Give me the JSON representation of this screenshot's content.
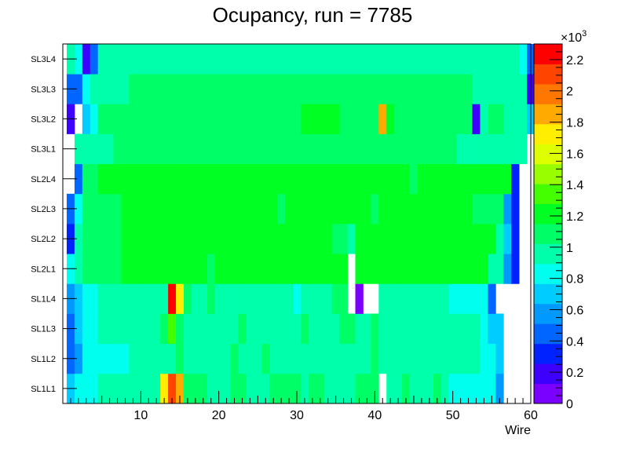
{
  "chart_data": {
    "type": "heatmap",
    "title": "Ocupancy, run = 7785",
    "xlabel": "Wire",
    "ylabel": "",
    "x_range": [
      0,
      60
    ],
    "x_bin_start": 1,
    "x_ticks": [
      10,
      20,
      30,
      40,
      50,
      60
    ],
    "x_tick_labels": [
      "10",
      "20",
      "30",
      "40",
      "50",
      "60"
    ],
    "rows": [
      "SL1L1",
      "SL1L2",
      "SL1L3",
      "SL1L4",
      "SL2L1",
      "SL2L2",
      "SL2L3",
      "SL2L4",
      "SL3L1",
      "SL3L2",
      "SL3L3",
      "SL3L4"
    ],
    "z_range": [
      0,
      2300
    ],
    "z_multiplier_label": "×10",
    "z_multiplier_exponent": "3",
    "z_ticks": [
      0,
      200,
      400,
      600,
      800,
      1000,
      1200,
      1400,
      1600,
      1800,
      2000,
      2200
    ],
    "z_tick_labels": [
      "0",
      "0.2",
      "0.4",
      "0.6",
      "0.8",
      "1",
      "1.2",
      "1.4",
      "1.6",
      "1.8",
      "2",
      "2.2"
    ],
    "palette": [
      "#7a00ff",
      "#3d00ff",
      "#0022ff",
      "#0066ff",
      "#0099ff",
      "#00ccff",
      "#00ffee",
      "#00ffaa",
      "#00ff66",
      "#00ff22",
      "#44ff00",
      "#99ff00",
      "#ddff00",
      "#ffee00",
      "#ffaa00",
      "#ff7700",
      "#ff4400",
      "#ff0000"
    ],
    "values": [
      [
        650,
        800,
        800,
        800,
        950,
        950,
        950,
        950,
        950,
        1000,
        1000,
        1000,
        1700,
        2100,
        1800,
        1050,
        1050,
        1050,
        1000,
        1000,
        1000,
        1050,
        1050,
        1000,
        1000,
        1000,
        1050,
        1100,
        1050,
        1050,
        1000,
        1050,
        1050,
        1000,
        1000,
        1000,
        1000,
        1050,
        1050,
        1050,
        null,
        1000,
        1000,
        1050,
        1000,
        1000,
        1000,
        1100,
        900,
        850,
        850,
        850,
        850,
        850,
        800,
        600,
        0,
        0,
        0,
        0
      ],
      [
        500,
        600,
        800,
        850,
        850,
        850,
        850,
        850,
        950,
        1000,
        1000,
        1000,
        1000,
        1000,
        1100,
        1000,
        1000,
        1000,
        1000,
        1000,
        1000,
        1050,
        1000,
        1000,
        1000,
        1050,
        1000,
        1000,
        1000,
        1000,
        1000,
        1000,
        1000,
        1000,
        1000,
        1000,
        1000,
        1000,
        1000,
        1050,
        1000,
        1000,
        1000,
        1000,
        1000,
        1000,
        950,
        950,
        950,
        950,
        950,
        950,
        900,
        850,
        800,
        650,
        0,
        0,
        0,
        0
      ],
      [
        500,
        650,
        800,
        800,
        950,
        950,
        950,
        950,
        950,
        1000,
        1000,
        1000,
        1050,
        1350,
        1100,
        1000,
        1000,
        1000,
        1000,
        1000,
        1000,
        1000,
        1050,
        1000,
        1000,
        1000,
        1000,
        1000,
        1000,
        1000,
        1050,
        1000,
        1000,
        1000,
        1000,
        1050,
        1050,
        1000,
        1000,
        1050,
        1000,
        1000,
        1000,
        1000,
        1000,
        1000,
        950,
        900,
        900,
        900,
        900,
        900,
        900,
        850,
        650,
        650,
        0,
        0,
        0,
        0
      ],
      [
        600,
        700,
        800,
        850,
        950,
        950,
        950,
        950,
        950,
        1000,
        1000,
        1000,
        1000,
        2300,
        1700,
        1050,
        1000,
        1000,
        1050,
        900,
        1000,
        1000,
        1000,
        1000,
        1000,
        1000,
        1000,
        1000,
        1000,
        850,
        1000,
        1000,
        1000,
        1000,
        1050,
        1050,
        null,
        100,
        null,
        null,
        1000,
        1000,
        1000,
        1000,
        1000,
        950,
        950,
        900,
        900,
        850,
        850,
        850,
        850,
        850,
        400,
        0,
        0,
        0,
        0,
        0
      ],
      [
        850,
        1000,
        1050,
        1050,
        1050,
        1050,
        1100,
        1150,
        1150,
        1150,
        1150,
        1150,
        1150,
        1150,
        1150,
        1150,
        1150,
        1150,
        1100,
        1150,
        1150,
        1150,
        1150,
        1150,
        1150,
        1150,
        1150,
        1150,
        1150,
        1150,
        1150,
        1150,
        1150,
        1150,
        1150,
        1150,
        null,
        1150,
        1150,
        1150,
        1150,
        1150,
        1150,
        1150,
        1150,
        1150,
        1150,
        1150,
        1150,
        1150,
        1150,
        1150,
        1150,
        1150,
        1000,
        950,
        600,
        300,
        0,
        0
      ],
      [
        350,
        900,
        1050,
        1050,
        1050,
        1050,
        1100,
        1150,
        1150,
        1150,
        1150,
        1150,
        1150,
        1150,
        1150,
        1150,
        1150,
        1150,
        1150,
        1150,
        1150,
        1150,
        1150,
        1150,
        1150,
        1150,
        1150,
        1150,
        1150,
        1150,
        1150,
        1150,
        1150,
        1150,
        1050,
        1100,
        1000,
        1150,
        1150,
        1150,
        1150,
        1150,
        1150,
        1150,
        1150,
        1150,
        1150,
        1150,
        1150,
        1150,
        1150,
        1150,
        1150,
        1150,
        1150,
        1000,
        650,
        300,
        0,
        0
      ],
      [
        450,
        800,
        1100,
        1050,
        1050,
        1050,
        1100,
        1150,
        1150,
        1150,
        1150,
        1150,
        1150,
        1150,
        1150,
        1150,
        1150,
        1150,
        1150,
        1150,
        1150,
        1150,
        1150,
        1150,
        1150,
        1150,
        1150,
        1100,
        1150,
        1150,
        1150,
        1150,
        1150,
        1150,
        1150,
        1150,
        1150,
        1150,
        1150,
        1100,
        1150,
        1150,
        1150,
        1150,
        1150,
        1150,
        1150,
        1150,
        1150,
        1150,
        1150,
        1150,
        1050,
        1050,
        1050,
        1050,
        550,
        300,
        0,
        0
      ],
      [
        null,
        500,
        1050,
        1050,
        1150,
        1150,
        1150,
        1150,
        1150,
        1150,
        1150,
        1150,
        1150,
        1150,
        1150,
        1150,
        1150,
        1150,
        1150,
        1150,
        1150,
        1150,
        1150,
        1150,
        1150,
        1150,
        1150,
        1150,
        1150,
        1150,
        1150,
        1150,
        1150,
        1150,
        1150,
        1150,
        1150,
        1150,
        1150,
        1150,
        1150,
        1150,
        1150,
        1150,
        1100,
        1150,
        1150,
        1150,
        1150,
        1150,
        1150,
        1150,
        1150,
        1150,
        1150,
        1150,
        1150,
        300,
        0,
        0
      ],
      [
        null,
        900,
        950,
        950,
        1000,
        1000,
        1050,
        1050,
        1050,
        1050,
        1050,
        1050,
        1050,
        1050,
        1050,
        1050,
        1050,
        1050,
        1050,
        1050,
        1050,
        1050,
        1050,
        1050,
        1050,
        1050,
        1050,
        1050,
        1050,
        1050,
        1050,
        1050,
        1050,
        1050,
        1050,
        1050,
        1050,
        1050,
        1050,
        1050,
        1050,
        1050,
        1050,
        1050,
        1050,
        1050,
        1050,
        1050,
        1050,
        1050,
        1000,
        1000,
        950,
        1000,
        950,
        950,
        950,
        950,
        950,
        null
      ],
      [
        200,
        null,
        700,
        850,
        1050,
        1050,
        1050,
        1050,
        1050,
        1050,
        1050,
        1050,
        1050,
        1050,
        1050,
        1050,
        1050,
        1050,
        1050,
        1050,
        1050,
        1050,
        1050,
        1050,
        1050,
        1050,
        1050,
        1050,
        1050,
        1050,
        1150,
        1150,
        1150,
        1150,
        1150,
        1050,
        1050,
        1050,
        1050,
        1050,
        1900,
        1150,
        1050,
        1050,
        1050,
        1050,
        1050,
        1050,
        1050,
        1050,
        1050,
        1050,
        200,
        900,
        1050,
        1050,
        1000,
        950,
        950,
        650
      ],
      [
        400,
        400,
        800,
        900,
        1000,
        1000,
        1000,
        1000,
        1050,
        1050,
        1050,
        1050,
        1050,
        1050,
        1050,
        1050,
        1050,
        1050,
        1050,
        1050,
        1050,
        1050,
        1050,
        1050,
        1050,
        1050,
        1050,
        1050,
        1050,
        1050,
        1050,
        1050,
        1050,
        1050,
        1050,
        1050,
        1050,
        1050,
        1050,
        1050,
        1050,
        1050,
        1050,
        1050,
        1050,
        1050,
        1050,
        1050,
        1050,
        1050,
        1050,
        1050,
        900,
        900,
        950,
        950,
        950,
        950,
        950,
        200
      ],
      [
        900,
        850,
        200,
        500,
        950,
        950,
        950,
        950,
        950,
        950,
        950,
        950,
        950,
        950,
        950,
        950,
        950,
        950,
        950,
        950,
        950,
        950,
        950,
        950,
        950,
        950,
        950,
        950,
        950,
        950,
        950,
        950,
        950,
        950,
        950,
        950,
        950,
        950,
        950,
        950,
        950,
        950,
        950,
        950,
        950,
        950,
        950,
        950,
        950,
        950,
        950,
        950,
        950,
        950,
        950,
        950,
        950,
        900,
        800,
        400
      ]
    ]
  }
}
